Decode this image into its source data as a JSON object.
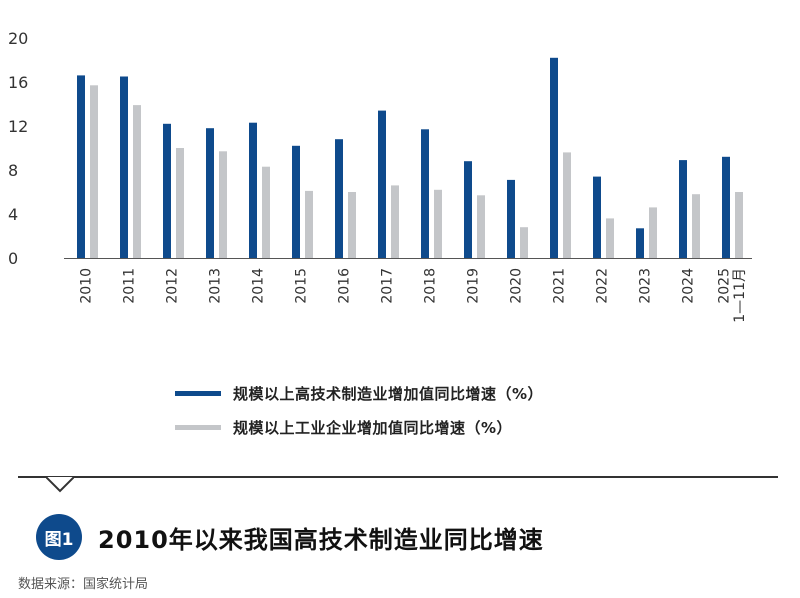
{
  "chart_data": {
    "type": "bar",
    "categories": [
      "2010",
      "2011",
      "2012",
      "2013",
      "2014",
      "2015",
      "2016",
      "2017",
      "2018",
      "2019",
      "2020",
      "2021",
      "2022",
      "2023",
      "2024",
      "2025\n1—11月"
    ],
    "series": [
      {
        "name": "规模以上高技术制造业增加值同比增速（%）",
        "color": "#0e4a8c",
        "values": [
          16.6,
          16.5,
          12.2,
          11.8,
          12.3,
          10.2,
          10.8,
          13.4,
          11.7,
          8.8,
          7.1,
          18.2,
          7.4,
          2.7,
          8.9,
          9.2
        ]
      },
      {
        "name": "规模以上工业企业增加值同比增速（%）",
        "color": "#c4c6c9",
        "values": [
          15.7,
          13.9,
          10.0,
          9.7,
          8.3,
          6.1,
          6.0,
          6.6,
          6.2,
          5.7,
          2.8,
          9.6,
          3.6,
          4.6,
          5.8,
          6.0
        ]
      }
    ],
    "yticks": [
      "0",
      "4",
      "8",
      "12",
      "16",
      "20"
    ],
    "ylim": [
      0,
      20
    ],
    "grid": false,
    "legend_position": "bottom"
  },
  "figure": {
    "badge": "图1",
    "title": "2010年以来我国高技术制造业同比增速",
    "source": "数据来源：国家统计局"
  }
}
